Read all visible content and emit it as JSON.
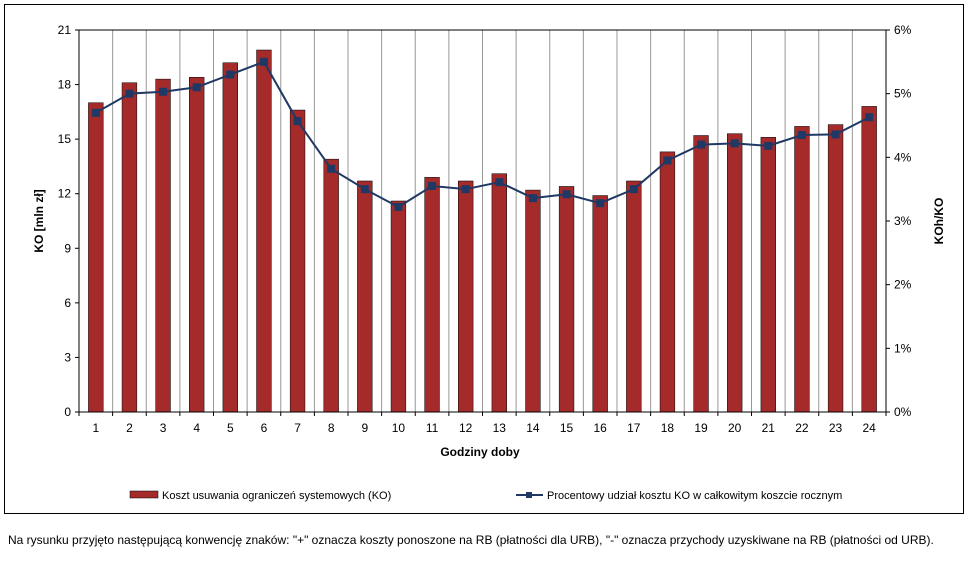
{
  "chart_data": {
    "type": "bar",
    "categories": [
      "1",
      "2",
      "3",
      "4",
      "5",
      "6",
      "7",
      "8",
      "9",
      "10",
      "11",
      "12",
      "13",
      "14",
      "15",
      "16",
      "17",
      "18",
      "19",
      "20",
      "21",
      "22",
      "23",
      "24"
    ],
    "xlabel": "Godziny doby",
    "ylabel": "KO [mln zł]",
    "y2label": "KOh/KO",
    "ylim": [
      0,
      21
    ],
    "yticks": [
      "0",
      "3",
      "6",
      "9",
      "12",
      "15",
      "18",
      "21"
    ],
    "y2lim": [
      0,
      6
    ],
    "y2ticks": [
      "0%",
      "1%",
      "2%",
      "3%",
      "4%",
      "5%",
      "6%"
    ],
    "grid": true,
    "legend_position": "bottom",
    "series": [
      {
        "name": "Koszt usuwania ograniczeń systemowych (KO)",
        "type": "bar",
        "axis": "left",
        "color": "#a52a2a",
        "values": [
          17.0,
          18.1,
          18.3,
          18.4,
          19.2,
          19.9,
          16.6,
          13.9,
          12.7,
          11.6,
          12.9,
          12.7,
          13.1,
          12.2,
          12.4,
          11.9,
          12.7,
          14.3,
          15.2,
          15.3,
          15.1,
          15.7,
          15.8,
          16.8
        ]
      },
      {
        "name": "Procentowy udział kosztu KO w całkowitym koszcie rocznym",
        "type": "line",
        "axis": "right",
        "color": "#1f3864",
        "values": [
          4.7,
          5.0,
          5.03,
          5.1,
          5.3,
          5.5,
          4.57,
          3.82,
          3.5,
          3.22,
          3.55,
          3.5,
          3.61,
          3.36,
          3.42,
          3.28,
          3.5,
          3.95,
          4.2,
          4.22,
          4.18,
          4.35,
          4.36,
          4.63
        ]
      }
    ]
  },
  "footnote": "Na rysunku przyjęto następującą konwencję znaków: \"+\" oznacza koszty ponoszone na RB (płatności dla URB), \"-\" oznacza przychody uzyskiwane na RB (płatności od URB)."
}
